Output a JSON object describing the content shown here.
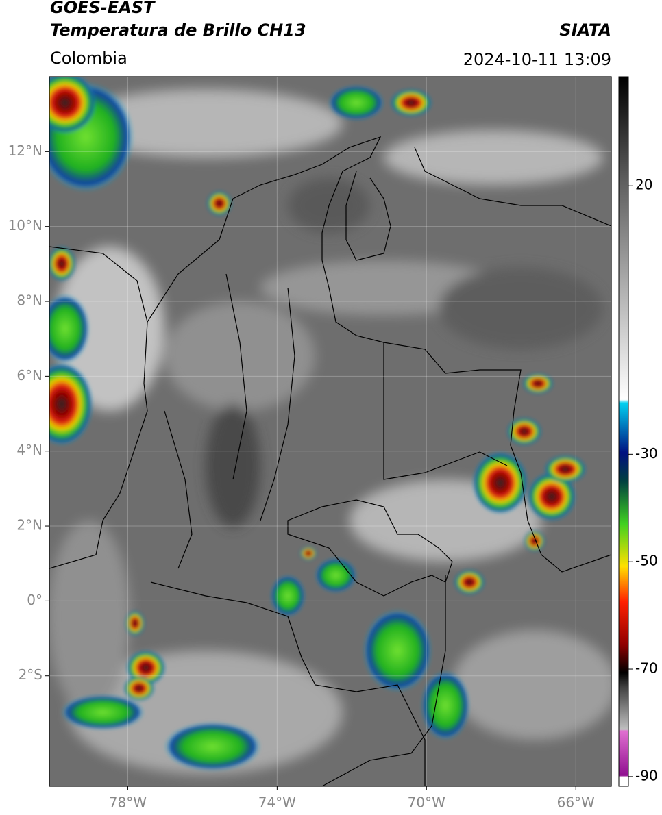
{
  "header": {
    "title": "GOES-EAST",
    "subtitle": "Temperatura de Brillo CH13",
    "source": "SIATA",
    "region": "Colombia",
    "timestamp": "2024-10-11 13:09"
  },
  "map": {
    "xlim": [
      -80.1,
      -65.05
    ],
    "ylim": [
      -4.95,
      14
    ],
    "xticks": [
      {
        "value": -78,
        "label": "78°W"
      },
      {
        "value": -74,
        "label": "74°W"
      },
      {
        "value": -70,
        "label": "70°W"
      },
      {
        "value": -66,
        "label": "66°W"
      }
    ],
    "yticks": [
      {
        "value": -2,
        "label": "2°S"
      },
      {
        "value": 0,
        "label": "0°"
      },
      {
        "value": 2,
        "label": "2°N"
      },
      {
        "value": 4,
        "label": "4°N"
      },
      {
        "value": 6,
        "label": "6°N"
      },
      {
        "value": 8,
        "label": "8°N"
      },
      {
        "value": 10,
        "label": "10°N"
      },
      {
        "value": 12,
        "label": "12°N"
      }
    ],
    "grid": true
  },
  "colorbar": {
    "lim": [
      -91.8,
      40.3
    ],
    "ticks": [
      20,
      -30,
      -50,
      -70,
      -90
    ]
  }
}
